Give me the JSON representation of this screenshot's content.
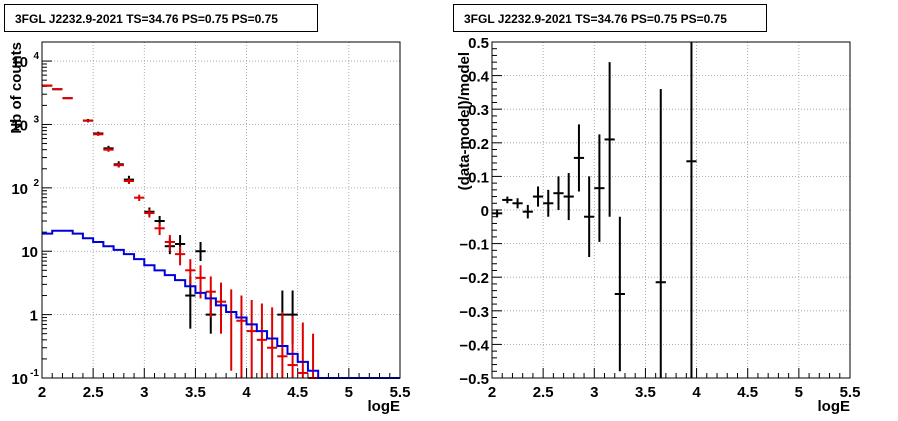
{
  "chart_data": [
    {
      "type": "line",
      "title": "3FGL J2232.9-2021 TS=34.76 PS=0.75 PS=0.75",
      "xlabel": "logE",
      "ylabel": "Nb of counts",
      "xlim": [
        2,
        5.5
      ],
      "ylim": [
        0.1,
        20000
      ],
      "yscale": "log",
      "grid": true,
      "x_ticks": [
        "2",
        "2.5",
        "3",
        "3.5",
        "4",
        "4.5",
        "5",
        "5.5"
      ],
      "y_ticks": [
        "10^{4}",
        "10^{3}",
        "10^{2}",
        "10",
        "1",
        "10^{-1}"
      ],
      "series": [
        {
          "color": "#000000",
          "style": "errorbar",
          "points": [
            {
              "x": 2.05,
              "y": 4100,
              "ylo": 4100,
              "yhi": 4100
            },
            {
              "x": 2.15,
              "y": 3600,
              "ylo": 3600,
              "yhi": 3600
            },
            {
              "x": 2.25,
              "y": 2600,
              "ylo": 2600,
              "yhi": 2600
            },
            {
              "x": 2.45,
              "y": 1150,
              "ylo": 1080,
              "yhi": 1220
            },
            {
              "x": 2.55,
              "y": 720,
              "ylo": 670,
              "yhi": 770
            },
            {
              "x": 2.65,
              "y": 420,
              "ylo": 380,
              "yhi": 460
            },
            {
              "x": 2.75,
              "y": 235,
              "ylo": 210,
              "yhi": 262
            },
            {
              "x": 2.85,
              "y": 135,
              "ylo": 115,
              "yhi": 155
            },
            {
              "x": 3.05,
              "y": 42,
              "ylo": 36,
              "yhi": 49
            },
            {
              "x": 3.15,
              "y": 30,
              "ylo": 25,
              "yhi": 36
            },
            {
              "x": 3.25,
              "y": 12,
              "ylo": 9,
              "yhi": 16
            },
            {
              "x": 3.35,
              "y": 13,
              "ylo": 9,
              "yhi": 18
            },
            {
              "x": 3.45,
              "y": 2,
              "ylo": 0.6,
              "yhi": 4
            },
            {
              "x": 3.55,
              "y": 10,
              "ylo": 7,
              "yhi": 14
            },
            {
              "x": 3.65,
              "y": 1,
              "ylo": 0.5,
              "yhi": 2.2
            },
            {
              "x": 4.35,
              "y": 1,
              "ylo": 0.35,
              "yhi": 2.4
            },
            {
              "x": 4.45,
              "y": 1,
              "ylo": 0.35,
              "yhi": 2.4
            }
          ]
        },
        {
          "color": "#e00000",
          "style": "errorbar",
          "points": [
            {
              "x": 2.05,
              "y": 4100,
              "ylo": 4100,
              "yhi": 4100
            },
            {
              "x": 2.15,
              "y": 3600,
              "ylo": 3600,
              "yhi": 3600
            },
            {
              "x": 2.25,
              "y": 2600,
              "ylo": 2600,
              "yhi": 2600
            },
            {
              "x": 2.45,
              "y": 1150,
              "ylo": 1100,
              "yhi": 1200
            },
            {
              "x": 2.55,
              "y": 700,
              "ylo": 660,
              "yhi": 740
            },
            {
              "x": 2.65,
              "y": 400,
              "ylo": 370,
              "yhi": 430
            },
            {
              "x": 2.75,
              "y": 228,
              "ylo": 210,
              "yhi": 246
            },
            {
              "x": 2.85,
              "y": 128,
              "ylo": 115,
              "yhi": 141
            },
            {
              "x": 2.95,
              "y": 70,
              "ylo": 62,
              "yhi": 78
            },
            {
              "x": 3.05,
              "y": 40,
              "ylo": 34,
              "yhi": 46
            },
            {
              "x": 3.15,
              "y": 23,
              "ylo": 18,
              "yhi": 28
            },
            {
              "x": 3.25,
              "y": 14,
              "ylo": 10,
              "yhi": 18
            },
            {
              "x": 3.35,
              "y": 9,
              "ylo": 6,
              "yhi": 12
            },
            {
              "x": 3.45,
              "y": 5,
              "ylo": 3,
              "yhi": 7.5
            },
            {
              "x": 3.55,
              "y": 3.8,
              "ylo": 1.8,
              "yhi": 6
            },
            {
              "x": 3.65,
              "y": 2.3,
              "ylo": 0.9,
              "yhi": 4
            },
            {
              "x": 3.75,
              "y": 1.6,
              "ylo": 0.5,
              "yhi": 3.2
            },
            {
              "x": 3.85,
              "y": 1.1,
              "ylo": 0.13,
              "yhi": 2.5
            },
            {
              "x": 3.95,
              "y": 0.8,
              "ylo": 0.1,
              "yhi": 2
            },
            {
              "x": 4.05,
              "y": 0.55,
              "ylo": 0.1,
              "yhi": 1.7
            },
            {
              "x": 4.15,
              "y": 0.4,
              "ylo": 0.1,
              "yhi": 1.5
            },
            {
              "x": 4.25,
              "y": 0.3,
              "ylo": 0.1,
              "yhi": 1.3
            },
            {
              "x": 4.35,
              "y": 0.22,
              "ylo": 0.1,
              "yhi": 1.1
            },
            {
              "x": 4.45,
              "y": 0.16,
              "ylo": 0.1,
              "yhi": 0.95
            },
            {
              "x": 4.55,
              "y": 0.12,
              "ylo": 0.1,
              "yhi": 0.75
            },
            {
              "x": 4.65,
              "y": 0.1,
              "ylo": 0.1,
              "yhi": 0.5
            }
          ]
        },
        {
          "color": "#0000dd",
          "style": "step",
          "bin_width": 0.1,
          "x": [
            2.0,
            2.1,
            2.2,
            2.3,
            2.4,
            2.5,
            2.6,
            2.7,
            2.8,
            2.9,
            3.0,
            3.1,
            3.2,
            3.3,
            3.4,
            3.5,
            3.6,
            3.7,
            3.8,
            3.9,
            4.0,
            4.1,
            4.2,
            4.3,
            4.4,
            4.5,
            4.6,
            4.7,
            4.8,
            4.9,
            5.0,
            5.1,
            5.2,
            5.3,
            5.4
          ],
          "y": [
            19,
            21,
            21,
            19,
            16,
            14,
            12,
            10.5,
            9,
            7.5,
            6,
            5,
            4.2,
            3.5,
            2.8,
            2.2,
            1.8,
            1.4,
            1.1,
            0.9,
            0.7,
            0.55,
            0.42,
            0.32,
            0.24,
            0.18,
            0.13,
            0.1,
            0.1,
            0.1,
            0.1,
            0.1,
            0.1,
            0.1,
            0.1
          ]
        }
      ]
    },
    {
      "type": "scatter",
      "title": "3FGL J2232.9-2021 TS=34.76 PS=0.75 PS=0.75",
      "xlabel": "logE",
      "ylabel": "(data-model)/model",
      "xlim": [
        2,
        5.5
      ],
      "ylim": [
        -0.5,
        0.5
      ],
      "grid": true,
      "x_ticks": [
        "2",
        "2.5",
        "3",
        "3.5",
        "4",
        "4.5",
        "5",
        "5.5"
      ],
      "y_ticks": [
        "0.5",
        "0.4",
        "0.3",
        "0.2",
        "0.1",
        "0",
        "−0.1",
        "−0.2",
        "−0.3",
        "−0.4",
        "−0.5"
      ],
      "series": [
        {
          "color": "#000000",
          "style": "errorbar",
          "points": [
            {
              "x": 2.05,
              "y": -0.01,
              "err": 0.012
            },
            {
              "x": 2.15,
              "y": 0.03,
              "err": 0.01
            },
            {
              "x": 2.25,
              "y": 0.02,
              "err": 0.015
            },
            {
              "x": 2.35,
              "y": -0.005,
              "err": 0.02
            },
            {
              "x": 2.45,
              "y": 0.04,
              "err": 0.03
            },
            {
              "x": 2.55,
              "y": 0.02,
              "err": 0.04
            },
            {
              "x": 2.65,
              "y": 0.05,
              "err": 0.05
            },
            {
              "x": 2.75,
              "y": 0.04,
              "err": 0.07
            },
            {
              "x": 2.85,
              "y": 0.155,
              "err": 0.1
            },
            {
              "x": 2.95,
              "y": -0.02,
              "err": 0.12
            },
            {
              "x": 3.05,
              "y": 0.065,
              "err": 0.16
            },
            {
              "x": 3.15,
              "y": 0.21,
              "err": 0.23
            },
            {
              "x": 3.25,
              "y": -0.25,
              "err": 0.23
            },
            {
              "x": 3.65,
              "y": -0.215,
              "err": 0.575
            },
            {
              "x": 3.95,
              "y": 0.145,
              "err": 0.9
            }
          ]
        }
      ]
    }
  ]
}
